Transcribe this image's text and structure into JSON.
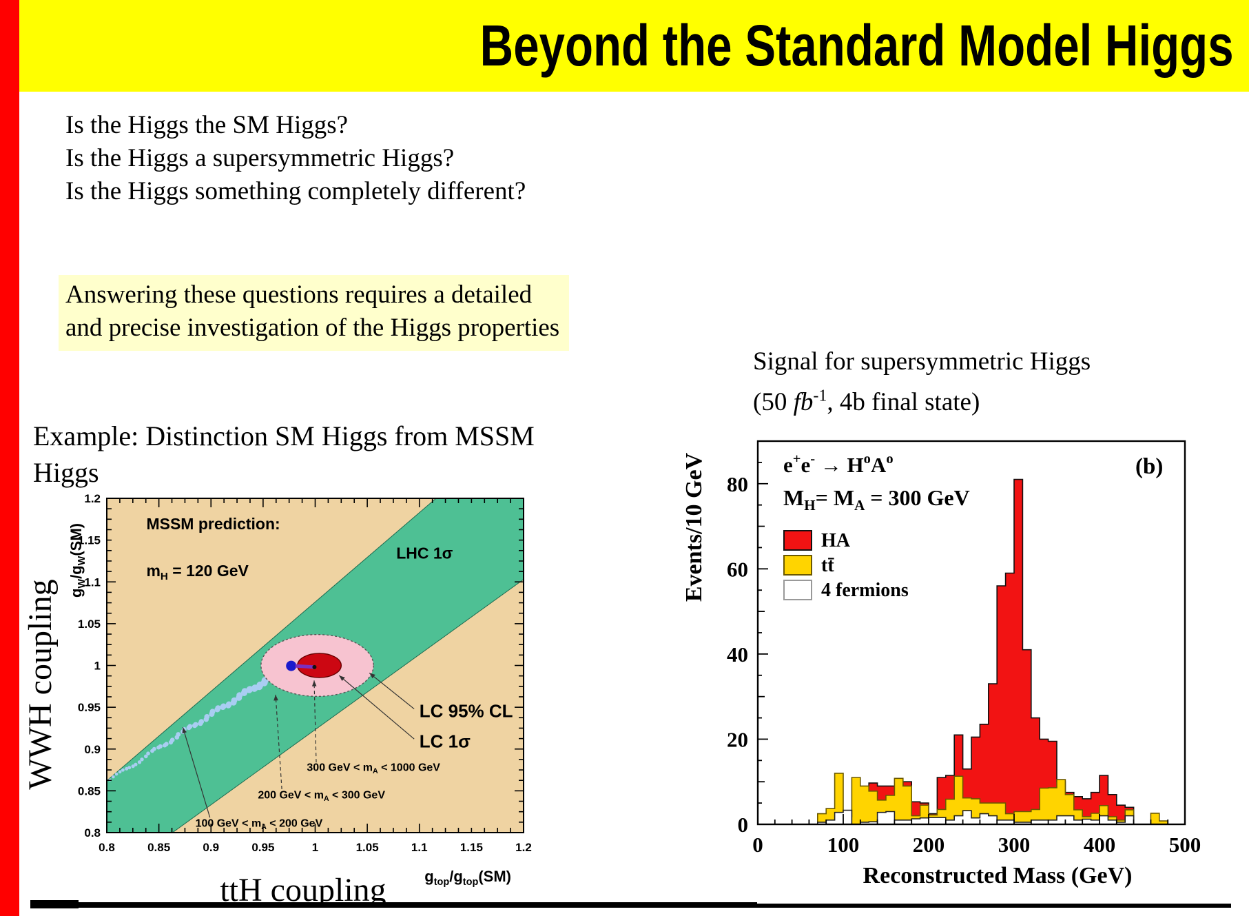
{
  "banner": {
    "title": "Beyond the Standard Model Higgs",
    "bg": "#FFFF00",
    "stripe": "#FF0000"
  },
  "questions": [
    "Is the Higgs the SM Higgs?",
    "Is the Higgs a supersymmetric Higgs?",
    "Is the Higgs something completely different?"
  ],
  "highlight": {
    "text": "Answering these questions requires a detailed\nand precise investigation of the Higgs properties",
    "bg": "#FFFFCC"
  },
  "example_caption": "Example: Distinction SM Higgs from MSSM\nHiggs",
  "signal_caption": {
    "line1": "Signal for supersymmetric Higgs",
    "pre": "(50 ",
    "unit": "fb",
    "sup": "-1",
    "post": ", 4b final state)"
  },
  "chart_data": [
    {
      "type": "area",
      "name": "coupling-plane",
      "title": "MSSM prediction:",
      "subtitle": "m_{H} = 120 GeV",
      "xlabel": "ttH coupling",
      "xlabel_axis": "g_{top}/g_{top}(SM)",
      "ylabel": "WWH coupling",
      "ylabel_axis": "g_{W}/g_{W}(SM)",
      "xlim": [
        0.8,
        1.2
      ],
      "ylim": [
        0.8,
        1.2
      ],
      "xticks": [
        "0.8",
        "0.85",
        "0.9",
        "0.95",
        "1",
        "1.05",
        "1.1",
        "1.15",
        "1.2"
      ],
      "yticks": [
        "0.8",
        "0.85",
        "0.9",
        "0.95",
        "1",
        "1.05",
        "1.1",
        "1.15",
        "1.2"
      ],
      "bg_color": "#EFD3A2",
      "band": {
        "label": "LHC 1σ",
        "color": "#4EC094",
        "polygon": [
          [
            0.8,
            0.862
          ],
          [
            1.116,
            1.2
          ],
          [
            1.2,
            1.2
          ],
          [
            1.2,
            1.103
          ],
          [
            0.863,
            0.8
          ],
          [
            0.8,
            0.8
          ]
        ]
      },
      "ellipses": [
        {
          "label": "LC 95% CL",
          "cx": 1.002,
          "cy": 1.0,
          "rx": 0.054,
          "ry": 0.037,
          "fill": "#F7C3D0",
          "stroke": "#555555"
        },
        {
          "label": "LC 1σ",
          "cx": 1.004,
          "cy": 1.0,
          "rx": 0.021,
          "ry": 0.0145,
          "fill": "#CC0712",
          "stroke": "#660000"
        }
      ],
      "track": {
        "color": "#A9CDF2",
        "start": [
          0.803,
          0.863
        ],
        "ctrl": [
          0.905,
          0.947
        ],
        "end": [
          0.9755,
          0.999
        ],
        "tip_color": "#1A1ACC",
        "tip": [
          0.977,
          0.9995
        ],
        "link_color": "#7B2FBE",
        "dot": [
          0.9993,
          0.998
        ]
      },
      "annotations": [
        {
          "text": "LC 95% CL",
          "x": 1.1,
          "y": 0.938,
          "size": 26,
          "line": [
            1.095,
            0.948,
            1.052,
            0.991
          ],
          "dashed": false
        },
        {
          "text": "LC 1σ",
          "x": 1.1,
          "y": 0.902,
          "size": 26,
          "line": [
            1.095,
            0.912,
            1.023,
            0.988
          ],
          "dashed": false
        },
        {
          "text": "300 GeV < m_{A} < 1000 GeV",
          "x": 0.992,
          "y": 0.874,
          "size": 16,
          "line": [
            1.001,
            0.884,
            0.999,
            0.982
          ],
          "dashed": true
        },
        {
          "text": "200 GeV < m_{A} < 300 GeV",
          "x": 0.945,
          "y": 0.841,
          "size": 16,
          "line": [
            0.968,
            0.852,
            0.962,
            0.965
          ],
          "dashed": true
        },
        {
          "text": "100 GeV < m_{A} < 200 GeV",
          "x": 0.885,
          "y": 0.807,
          "size": 16,
          "line": [
            0.899,
            0.818,
            0.873,
            0.926
          ],
          "dashed": false
        }
      ]
    },
    {
      "type": "bar",
      "name": "mass-histogram",
      "title": "e^{+}e^{-} → H^{o}A^{o}",
      "subtitle": "M_{H}= M_{A} = 300 GeV",
      "panel_label": "(b)",
      "xlabel": "Reconstructed Mass (GeV)",
      "ylabel": "Events/10 GeV",
      "xlim": [
        0,
        500
      ],
      "ylim": [
        0,
        90
      ],
      "bin_width": 10,
      "xticks": [
        0,
        100,
        200,
        300,
        400,
        500
      ],
      "yticks": [
        0,
        20,
        40,
        60,
        80
      ],
      "series": [
        {
          "name": "HA",
          "color": "#F21313",
          "stroke": "#111111",
          "values": [
            0,
            0,
            0,
            0,
            0,
            0,
            0,
            0,
            0,
            0,
            0,
            0,
            0,
            9.7,
            9,
            9,
            7.6,
            10,
            5.3,
            5,
            2.5,
            11,
            11.5,
            21,
            13,
            20.5,
            23.5,
            33,
            56,
            59,
            81,
            41,
            25,
            20,
            19.5,
            10,
            7.5,
            6.5,
            6,
            7.5,
            11.5,
            7,
            4.5,
            4,
            0,
            0,
            0,
            0,
            0,
            0
          ]
        },
        {
          "name": "tt̄",
          "color": "#FFD400",
          "stroke": "#6B5900",
          "values": [
            0,
            0,
            0,
            0,
            0,
            0,
            0,
            2.5,
            3.7,
            12,
            1.8,
            11,
            9,
            7.8,
            5.7,
            6.8,
            10.8,
            9,
            2,
            4.5,
            2.2,
            3.5,
            5.9,
            11.3,
            6.2,
            6,
            5,
            5,
            5,
            2.5,
            3,
            3,
            3.5,
            8.5,
            8.6,
            10.5,
            7,
            3.4,
            1.8,
            2.6,
            4.4,
            1.8,
            1,
            3.4,
            0,
            0,
            2.6,
            0.8,
            0,
            0
          ]
        },
        {
          "name": "4 fermions",
          "color": "#FFFFFF",
          "stroke": "#222222",
          "values": [
            0,
            0,
            0,
            0,
            0,
            0,
            0,
            0.5,
            1,
            2.8,
            3.3,
            0,
            0.5,
            0.6,
            2.8,
            3,
            1,
            1,
            1.3,
            1.5,
            1.6,
            1.6,
            1,
            2,
            3.2,
            1.5,
            2.5,
            2,
            1,
            1,
            0.5,
            0.5,
            1,
            1,
            1,
            2,
            2,
            1,
            1.2,
            1,
            2,
            1,
            0.5,
            2,
            0,
            0,
            0,
            0,
            0,
            0
          ]
        }
      ]
    }
  ],
  "footer_bar_color": "#000000"
}
